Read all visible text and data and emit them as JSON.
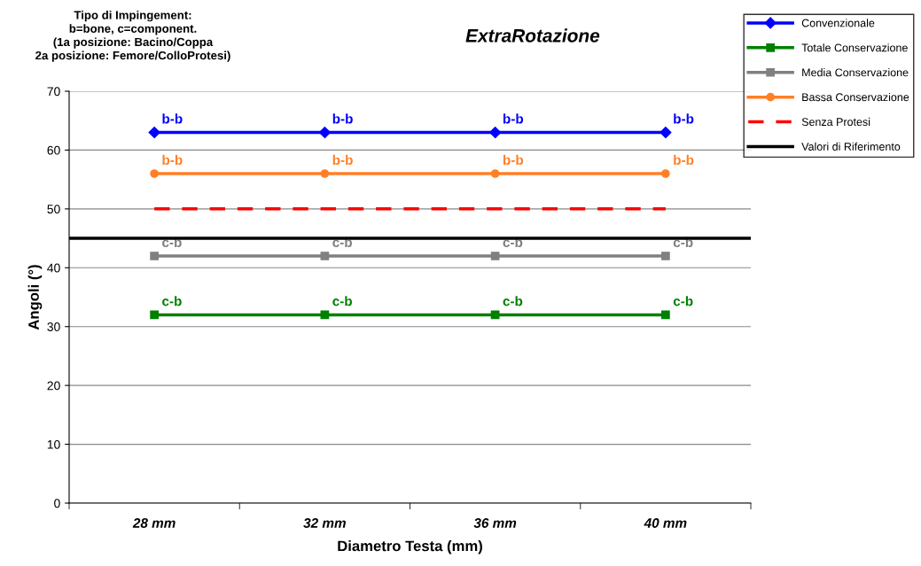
{
  "chart_data": {
    "type": "line",
    "title": "ExtraRotazione",
    "xlabel": "Diametro Testa (mm)",
    "ylabel": "Angoli (°)",
    "categories": [
      "28 mm",
      "32 mm",
      "36 mm",
      "40 mm"
    ],
    "series": [
      {
        "name": "Convenzionale",
        "color": "#0000ff",
        "marker": "diamond",
        "values": [
          63,
          63,
          63,
          63
        ],
        "value_labels": [
          "b-b",
          "b-b",
          "b-b",
          "b-b"
        ]
      },
      {
        "name": "Totale Conservazione",
        "color": "#008000",
        "marker": "square",
        "values": [
          32,
          32,
          32,
          32
        ],
        "value_labels": [
          "c-b",
          "c-b",
          "c-b",
          "c-b"
        ]
      },
      {
        "name": "Media Conservazione",
        "color": "#808080",
        "marker": "square",
        "values": [
          42,
          42,
          42,
          42
        ],
        "value_labels": [
          "c-b",
          "c-b",
          "c-b",
          "c-b"
        ]
      },
      {
        "name": "Bassa Conservazione",
        "color": "#ff7f27",
        "marker": "circle",
        "values": [
          56,
          56,
          56,
          56
        ],
        "value_labels": [
          "b-b",
          "b-b",
          "b-b",
          "b-b"
        ]
      },
      {
        "name": "Senza Protesi",
        "color": "#ff0000",
        "marker": "none",
        "line_style": "dashed",
        "values": [
          50,
          50,
          50,
          50
        ]
      }
    ],
    "ref_lines": [
      {
        "axis": "y",
        "value": 45,
        "label": "Valori di Riferimento",
        "color": "#000000",
        "line_style": "solid"
      }
    ],
    "ylim": [
      0,
      70
    ],
    "yticks": [
      0,
      10,
      20,
      30,
      40,
      50,
      60,
      70
    ],
    "grid": "y",
    "legend": "top right",
    "annotations": [
      "Tipo di Impingement:\nb=bone, c=component.\n(1a posizione: Bacino/Coppa\n2a posizione: Femore/ColloProtesi)"
    ]
  }
}
